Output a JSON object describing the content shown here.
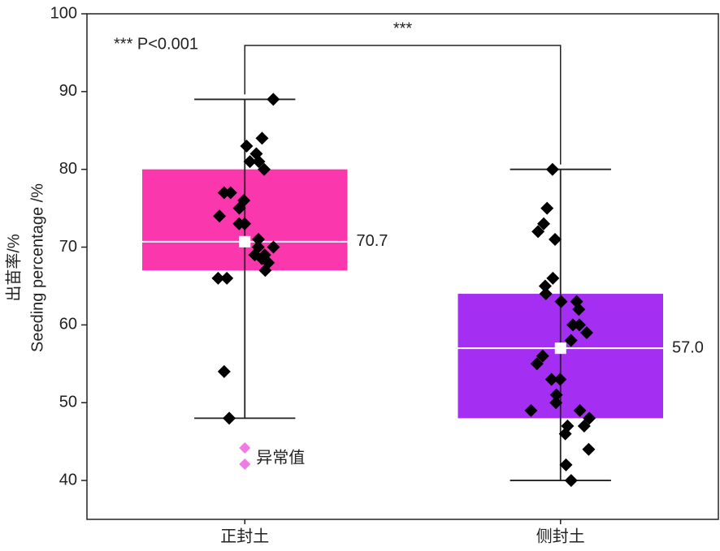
{
  "chart_data": {
    "type": "box",
    "y_label_lines": [
      "出苗率/%",
      "Seeding percentage /%"
    ],
    "annotation": "*** P<0.001",
    "significance": "***",
    "categories": [
      "正封土",
      "侧封土"
    ],
    "ylim": [
      35,
      100
    ],
    "yticks": [
      40,
      50,
      60,
      70,
      80,
      90,
      100
    ],
    "legend": {
      "label": "异常值",
      "color": "#f07ae6"
    },
    "boxes": [
      {
        "color": "#fa37ad",
        "q1": 67,
        "median": 70.7,
        "q3": 80,
        "whisker_low": 48,
        "whisker_high": 89,
        "mean": 70.7,
        "mean_label": "70.7",
        "points": [
          89,
          83,
          84,
          82,
          81,
          80,
          81,
          77,
          77,
          76,
          75,
          74,
          73,
          73,
          71,
          70,
          70,
          69,
          69,
          68,
          68.5,
          67,
          66,
          66,
          54,
          48
        ]
      },
      {
        "color": "#a42ff2",
        "q1": 48,
        "median": 57.0,
        "q3": 64,
        "whisker_low": 40,
        "whisker_high": 80,
        "mean": 57.0,
        "mean_label": "57.0",
        "points": [
          80,
          75,
          73,
          72,
          71,
          66,
          65,
          64,
          63,
          63,
          62,
          60,
          60,
          59,
          58,
          56,
          55,
          53,
          53,
          51,
          50,
          49,
          49,
          48,
          47,
          47,
          46,
          44,
          42,
          40
        ]
      }
    ]
  }
}
